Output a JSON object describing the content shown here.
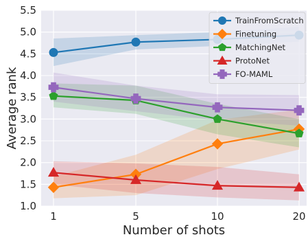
{
  "chart_data": {
    "type": "line",
    "title": "",
    "xlabel": "Number of shots",
    "ylabel": "Average rank",
    "x": [
      1,
      5,
      10,
      20
    ],
    "x_tick_labels": [
      "1",
      "5",
      "10",
      "20"
    ],
    "ylim": [
      1.0,
      5.5
    ],
    "y_ticks": [
      1.0,
      1.5,
      2.0,
      2.5,
      3.0,
      3.5,
      4.0,
      4.5,
      5.0,
      5.5
    ],
    "y_tick_labels": [
      "1.0",
      "1.5",
      "2.0",
      "2.5",
      "3.0",
      "3.5",
      "4.0",
      "4.5",
      "5.0",
      "5.5"
    ],
    "grid": true,
    "background_color": "#eaeaf2",
    "legend_position": "top-right",
    "series": [
      {
        "name": "TrainFromScratch",
        "color": "#1f77b4",
        "marker": "circle",
        "values": [
          4.53,
          4.77,
          4.83,
          4.93
        ],
        "lower": [
          4.22,
          4.6,
          4.68,
          4.78
        ],
        "upper": [
          4.85,
          4.93,
          5.0,
          5.12
        ]
      },
      {
        "name": "Finetuning",
        "color": "#ff7f0e",
        "marker": "diamond",
        "values": [
          1.43,
          1.73,
          2.43,
          2.77
        ],
        "lower": [
          1.18,
          1.25,
          1.85,
          2.3
        ],
        "upper": [
          1.68,
          2.18,
          2.98,
          3.22
        ]
      },
      {
        "name": "MatchingNet",
        "color": "#2ca02c",
        "marker": "pentagon",
        "values": [
          3.53,
          3.43,
          3.0,
          2.67
        ],
        "lower": [
          3.27,
          3.12,
          2.65,
          2.35
        ],
        "upper": [
          3.82,
          3.77,
          3.35,
          3.0
        ]
      },
      {
        "name": "ProtoNet",
        "color": "#d62728",
        "marker": "triangle",
        "values": [
          1.77,
          1.6,
          1.47,
          1.43
        ],
        "lower": [
          1.5,
          1.3,
          1.2,
          1.13
        ],
        "upper": [
          2.03,
          1.98,
          1.9,
          1.73
        ]
      },
      {
        "name": "FO-MAML",
        "color": "#9467bd",
        "marker": "plus",
        "values": [
          3.73,
          3.47,
          3.27,
          3.2
        ],
        "lower": [
          3.4,
          3.18,
          2.97,
          2.85
        ],
        "upper": [
          4.07,
          3.77,
          3.57,
          3.55
        ]
      }
    ]
  }
}
